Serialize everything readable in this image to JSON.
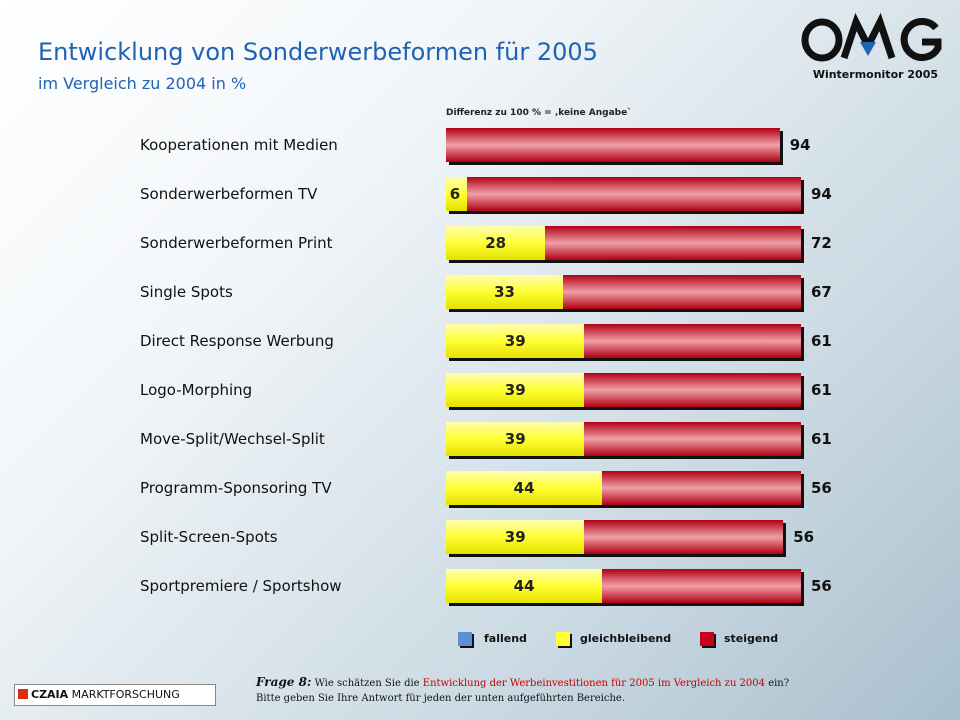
{
  "title": "Entwicklung von Sonderwerbeformen für 2005",
  "subtitle": "im Vergleich zu 2004 in %",
  "brand": {
    "logo_text": "OMG",
    "monitor": "Wintermonitor  2005",
    "source": "CZAIA MARKTFORSCHUNG",
    "source_bold": "CZAIA",
    "source_rest": "MARKTFORSCHUNG"
  },
  "note": "Differenz zu 100 % = ‚keine Angabe`",
  "question": {
    "label": "Frage 8:",
    "text_before": "Wie schätzen Sie die ",
    "text_highlight": "Entwicklung der Werbeinvestitionen für 2005 im Vergleich  zu 2004",
    "text_after": " ein?",
    "line2": "Bitte geben Sie  Ihre Antwort  für jeden der unten aufgeführten Bereiche."
  },
  "colors": {
    "fallend": "#5b8fd6",
    "gleichbleibend": "#ffff33",
    "steigend": "#c8001e",
    "title": "#1f63b4"
  },
  "chart_data": {
    "type": "bar",
    "orientation": "horizontal",
    "stacked": true,
    "categories": [
      "Kooperationen mit Medien",
      "Sonderwerbeformen TV",
      "Sonderwerbeformen Print",
      "Single Spots",
      "Direct Response Werbung",
      "Logo-Morphing",
      "Move-Split/Wechsel-Split",
      "Programm-Sponsoring TV",
      "Split-Screen-Spots",
      "Sportpremiere / Sportshow"
    ],
    "series": [
      {
        "name": "fallend",
        "values": [
          0,
          0,
          0,
          0,
          0,
          0,
          0,
          0,
          0,
          0
        ]
      },
      {
        "name": "gleichbleibend",
        "values": [
          0,
          6,
          28,
          33,
          39,
          39,
          39,
          44,
          39,
          44
        ]
      },
      {
        "name": "steigend",
        "values": [
          94,
          94,
          72,
          67,
          61,
          61,
          61,
          56,
          56,
          56
        ]
      }
    ],
    "xlim": [
      0,
      100
    ],
    "legend_position": "bottom"
  }
}
